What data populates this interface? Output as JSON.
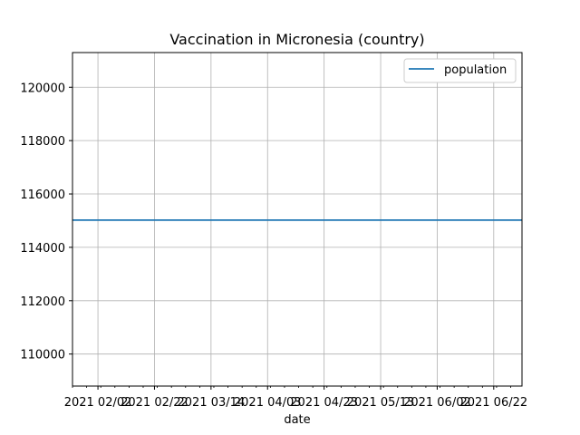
{
  "chart_data": {
    "type": "line",
    "title": "Vaccination in Micronesia (country)",
    "xlabel": "date",
    "ylabel": "",
    "x_axis": {
      "type": "date",
      "range": [
        "2021-01-24",
        "2021-07-02"
      ],
      "major_ticks": [
        {
          "date": "2021-02-02",
          "label": "2021 02/02"
        },
        {
          "date": "2021-02-22",
          "label": "2021 02/22"
        },
        {
          "date": "2021-03-14",
          "label": "2021 03/14"
        },
        {
          "date": "2021-04-03",
          "label": "2021 04/03"
        },
        {
          "date": "2021-04-23",
          "label": "2021 04/23"
        },
        {
          "date": "2021-05-13",
          "label": "2021 05/13"
        },
        {
          "date": "2021-06-02",
          "label": "2021 06/02"
        },
        {
          "date": "2021-06-22",
          "label": "2021 06/22"
        }
      ],
      "minor_tick_step_days": 5
    },
    "y_axis": {
      "range": [
        108800,
        121300
      ],
      "ticks": [
        110000,
        112000,
        114000,
        116000,
        118000,
        120000
      ]
    },
    "grid": true,
    "legend_position": "top-right",
    "series": [
      {
        "name": "population",
        "color": "#1f77b4",
        "x": [
          "2021-01-24",
          "2021-07-02"
        ],
        "values": [
          115021,
          115021
        ]
      }
    ]
  }
}
